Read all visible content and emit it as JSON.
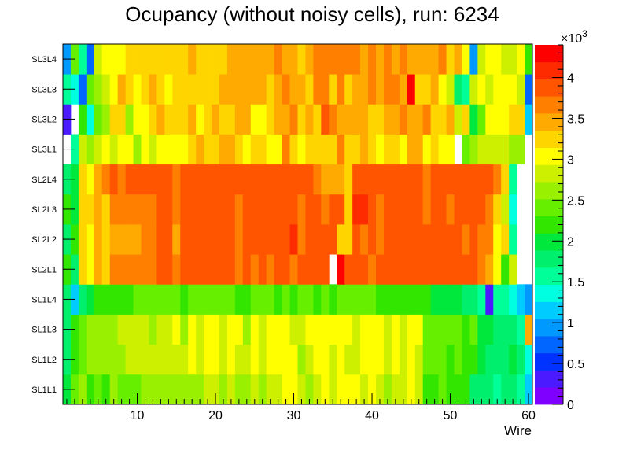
{
  "chart_data": {
    "type": "heatmap",
    "title": "Ocupancy (without noisy cells), run: 6234",
    "xlabel": "Wire",
    "ylabel": "",
    "xlim": [
      0.5,
      60.5
    ],
    "x_ticks": [
      10,
      20,
      30,
      40,
      50,
      60
    ],
    "rows": [
      "SL1L1",
      "SL1L2",
      "SL1L3",
      "SL1L4",
      "SL2L1",
      "SL2L2",
      "SL2L3",
      "SL2L4",
      "SL3L1",
      "SL3L2",
      "SL3L3",
      "SL3L4"
    ],
    "z_range": [
      0,
      4400
    ],
    "colorbar_ticks": [
      "0",
      "0.5",
      "1",
      "1.5",
      "2",
      "2.5",
      "3",
      "3.5",
      "4"
    ],
    "colorbar_ticks_values": [
      0,
      500,
      1000,
      1500,
      2000,
      2500,
      3000,
      3500,
      4000
    ],
    "colorbar_exponent": "×10",
    "colorbar_exponent_power": "3",
    "colorbar_colors": [
      "#7f00ff",
      "#4c1aff",
      "#0033ff",
      "#0066ff",
      "#0099ff",
      "#00ccff",
      "#00ffe0",
      "#00ff99",
      "#00f06e",
      "#00e83c",
      "#33e600",
      "#66f000",
      "#99f000",
      "#ccf000",
      "#ffff00",
      "#ffd500",
      "#ffaa00",
      "#ff8000",
      "#ff5500",
      "#ff2b00",
      "#ff0000"
    ],
    "values": [
      [
        2050,
        2400,
        2550,
        2300,
        2350,
        2200,
        2550,
        2500,
        2400,
        2500,
        2700,
        2600,
        2650,
        2600,
        2700,
        2700,
        2700,
        2700,
        2800,
        2750,
        2600,
        2750,
        2650,
        2700,
        2750,
        2650,
        2900,
        2900,
        3000,
        2950,
        2750,
        2700,
        2900,
        3050,
        2850,
        3000,
        2950,
        3000,
        2850,
        3000,
        2850,
        2700,
        2850,
        2900,
        3050,
        2750,
        2250,
        2250,
        2350,
        2200,
        2150,
        2250,
        1800,
        1800,
        1800,
        1600,
        1700,
        1800,
        1600,
        1200
      ],
      [
        1800,
        2250,
        2450,
        2650,
        2650,
        2650,
        2700,
        2700,
        2800,
        2800,
        2850,
        2900,
        2900,
        2800,
        2900,
        2800,
        3000,
        2900,
        3000,
        3000,
        2800,
        3000,
        2900,
        2750,
        3050,
        2850,
        2950,
        3050,
        3000,
        3000,
        2700,
        2850,
        3050,
        3000,
        2900,
        3050,
        2850,
        2850,
        2950,
        3050,
        3000,
        2750,
        3000,
        2900,
        3050,
        2850,
        2350,
        2350,
        2500,
        2300,
        2400,
        2300,
        2200,
        1900,
        1700,
        1700,
        1800,
        2000,
        1700,
        1350
      ],
      [
        1700,
        2300,
        2400,
        2550,
        2650,
        2600,
        2700,
        2750,
        2900,
        2800,
        2800,
        2650,
        2850,
        2900,
        3000,
        2700,
        3050,
        2900,
        2950,
        3000,
        2800,
        3050,
        3000,
        2700,
        3100,
        2900,
        3000,
        3000,
        3000,
        2900,
        2800,
        2950,
        3100,
        3000,
        3050,
        3050,
        2950,
        2900,
        3000,
        3000,
        3050,
        2900,
        3050,
        2900,
        3000,
        3000,
        2400,
        2400,
        2400,
        2400,
        2400,
        2300,
        2350,
        2050,
        2000,
        1850,
        1800,
        1700,
        1600,
        3500
      ],
      [
        1800,
        1100,
        1800,
        2000,
        2100,
        2250,
        2300,
        2250,
        2300,
        2350,
        2350,
        2350,
        2400,
        2450,
        2350,
        2300,
        2400,
        2450,
        2400,
        2450,
        2400,
        2400,
        2300,
        2300,
        2350,
        2350,
        2350,
        2300,
        2350,
        2300,
        2450,
        2450,
        2300,
        2500,
        2300,
        2350,
        2450,
        2350,
        2400,
        2350,
        2300,
        2300,
        2200,
        2200,
        2300,
        2300,
        2150,
        2050,
        2050,
        2000,
        1900,
        1800,
        1750,
        1650,
        300,
        1650,
        1650,
        1450,
        1250,
        900
      ],
      [
        2250,
        1850,
        3350,
        3000,
        3400,
        3200,
        3650,
        3650,
        3650,
        3650,
        3750,
        3650,
        3800,
        3850,
        3700,
        3850,
        3900,
        3800,
        3800,
        3800,
        3800,
        3800,
        3700,
        3900,
        3700,
        3800,
        3750,
        3800,
        3800,
        3750,
        3800,
        3800,
        3800,
        3950,
        -1,
        4250,
        3900,
        3900,
        3900,
        3650,
        3900,
        3900,
        3900,
        3950,
        3900,
        3900,
        3900,
        3900,
        3900,
        3900,
        3850,
        3800,
        3800,
        3700,
        3500,
        3100,
        2200,
        2800,
        -1,
        -1
      ],
      [
        1850,
        2100,
        3300,
        3100,
        3400,
        3300,
        3550,
        3550,
        3550,
        3550,
        3750,
        3650,
        3850,
        3800,
        3550,
        3900,
        3950,
        3800,
        3800,
        3850,
        3800,
        3850,
        3750,
        3900,
        3850,
        3900,
        3850,
        3800,
        3900,
        4150,
        3750,
        3850,
        3800,
        3900,
        3900,
        3350,
        3200,
        3950,
        3600,
        3800,
        3700,
        3950,
        3900,
        3850,
        3900,
        3950,
        3850,
        3850,
        3900,
        3900,
        3850,
        3750,
        3800,
        3600,
        3600,
        3000,
        3300,
        1550,
        -1,
        -1
      ],
      [
        2100,
        1900,
        3150,
        3300,
        3400,
        3350,
        3700,
        3650,
        3650,
        3700,
        3700,
        3700,
        3800,
        3800,
        3650,
        3800,
        3800,
        3850,
        3800,
        3850,
        3800,
        3850,
        3700,
        3850,
        3850,
        3900,
        3850,
        3850,
        3850,
        3850,
        3750,
        3850,
        3850,
        3650,
        3850,
        3800,
        3300,
        4050,
        4100,
        3800,
        3750,
        3900,
        3800,
        3850,
        3800,
        3800,
        3700,
        3800,
        3850,
        3750,
        3850,
        3800,
        3800,
        3800,
        3700,
        3300,
        2850,
        1400,
        -1,
        -1
      ],
      [
        1700,
        2000,
        3250,
        3050,
        3450,
        3700,
        3800,
        3650,
        3800,
        3800,
        3800,
        3850,
        3800,
        3800,
        3650,
        3900,
        3950,
        3850,
        3850,
        3900,
        3800,
        3850,
        3800,
        3850,
        3850,
        3850,
        3900,
        3850,
        3850,
        3800,
        3850,
        3900,
        3600,
        3500,
        3500,
        3500,
        3250,
        3900,
        3850,
        3850,
        3850,
        3900,
        3850,
        3850,
        3900,
        3900,
        3700,
        3850,
        3850,
        3850,
        3900,
        3850,
        3900,
        3850,
        3800,
        3700,
        3300,
        1650,
        -1,
        -1
      ],
      [
        -1,
        1650,
        2800,
        2700,
        2900,
        3100,
        2850,
        3050,
        3050,
        2700,
        3100,
        2900,
        3000,
        3100,
        2950,
        3000,
        3150,
        3450,
        3300,
        3200,
        3450,
        3400,
        3250,
        3100,
        3200,
        3200,
        3100,
        3000,
        3700,
        3250,
        3100,
        3300,
        3350,
        3250,
        3200,
        3650,
        3150,
        3350,
        3450,
        3200,
        3100,
        3250,
        3250,
        3050,
        3450,
        3400,
        3050,
        3250,
        3100,
        3000,
        -1,
        2400,
        2550,
        2800,
        2900,
        2850,
        2750,
        2700,
        2600,
        -1
      ],
      [
        400,
        -1,
        2100,
        1450,
        2450,
        2700,
        3350,
        3300,
        2700,
        3050,
        3000,
        3150,
        3500,
        3250,
        3150,
        3300,
        3450,
        3000,
        3350,
        3500,
        3250,
        3300,
        3500,
        3500,
        3050,
        3100,
        3350,
        3450,
        3500,
        3750,
        3350,
        3450,
        3350,
        3800,
        3700,
        3500,
        3450,
        3400,
        3500,
        3150,
        3150,
        3500,
        3500,
        3600,
        3500,
        3500,
        3600,
        3300,
        3200,
        3450,
        2850,
        3300,
        1900,
        2350,
        3000,
        3050,
        2950,
        3250,
        3200,
        1050
      ],
      [
        1550,
        1450,
        800,
        2350,
        2700,
        2800,
        3050,
        3400,
        3250,
        3100,
        3250,
        3400,
        3200,
        3050,
        3300,
        3350,
        3350,
        3250,
        3300,
        3150,
        3450,
        3400,
        3500,
        3450,
        3450,
        3500,
        3350,
        3500,
        3600,
        3500,
        3500,
        3350,
        3600,
        3750,
        3200,
        3600,
        3300,
        3550,
        3400,
        3650,
        3450,
        3750,
        3650,
        3400,
        4300,
        3200,
        3300,
        3400,
        2950,
        2900,
        1800,
        1600,
        2900,
        3000,
        2900,
        3000,
        3100,
        2950,
        2900,
        800
      ],
      [
        1000,
        2350,
        1550,
        800,
        2800,
        3050,
        3000,
        3100,
        3250,
        3200,
        3300,
        3150,
        3250,
        3250,
        3350,
        3300,
        3400,
        3350,
        3300,
        3250,
        3350,
        3400,
        3400,
        3500,
        3500,
        3500,
        3500,
        3750,
        3450,
        3450,
        3350,
        3500,
        3600,
        3750,
        3600,
        3600,
        3750,
        3700,
        3550,
        3750,
        3450,
        3750,
        3450,
        3700,
        3500,
        3500,
        3500,
        3450,
        3600,
        3200,
        3400,
        3000,
        1000,
        2900,
        3050,
        2950,
        2900,
        2900,
        3000,
        2100
      ]
    ]
  }
}
